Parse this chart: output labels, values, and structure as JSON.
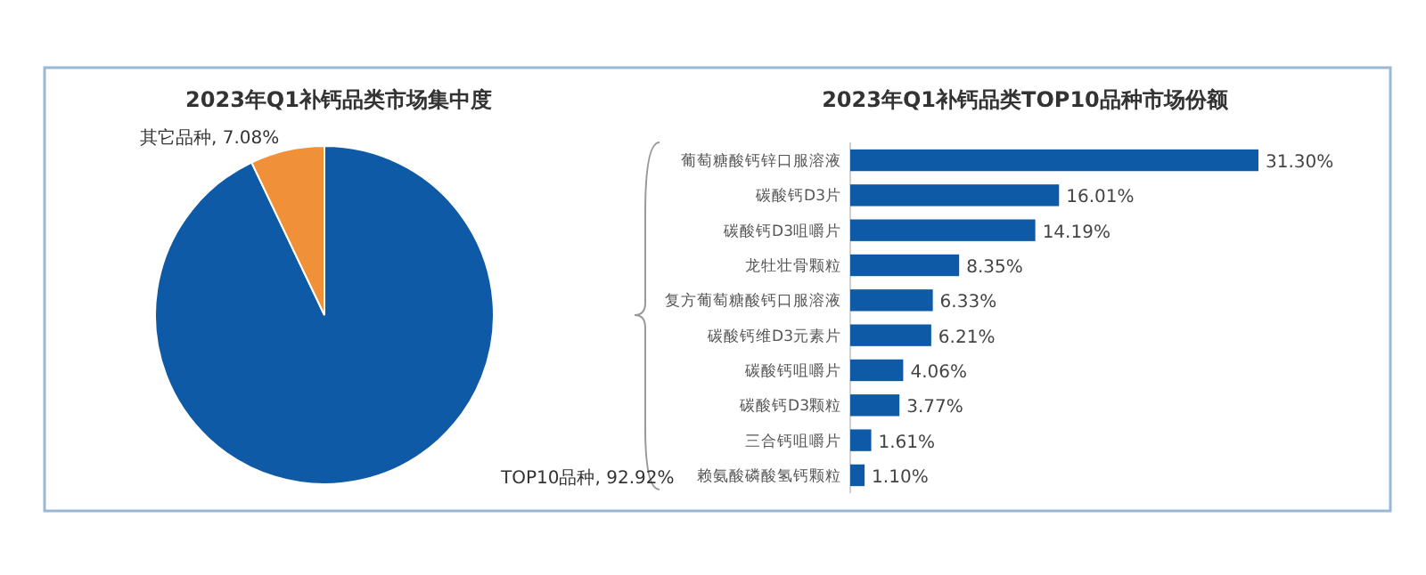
{
  "chart_data": [
    {
      "type": "pie",
      "title": "2023年Q1补钙品类市场集中度",
      "categories": [
        "TOP10品种",
        "其它品种"
      ],
      "values": [
        92.92,
        7.08
      ],
      "colors": [
        "#0f5aa6",
        "#f0913a"
      ],
      "value_labels": [
        "92.92%",
        "7.08%"
      ]
    },
    {
      "type": "bar",
      "orientation": "horizontal",
      "title": "2023年Q1补钙品类TOP10品种市场份额",
      "categories": [
        "葡萄糖酸钙锌口服溶液",
        "碳酸钙D3片",
        "碳酸钙D3咀嚼片",
        "龙牡壮骨颗粒",
        "复方葡萄糖酸钙口服溶液",
        "碳酸钙维D3元素片",
        "碳酸钙咀嚼片",
        "碳酸钙D3颗粒",
        "三合钙咀嚼片",
        "赖氨酸磷酸氢钙颗粒"
      ],
      "values": [
        31.3,
        16.01,
        14.19,
        8.35,
        6.33,
        6.21,
        4.06,
        3.77,
        1.61,
        1.1
      ],
      "color": "#0f5aa6",
      "value_labels": [
        "31.30%",
        "16.01%",
        "14.19%",
        "8.35%",
        "6.33%",
        "6.21%",
        "4.06%",
        "3.77%",
        "1.61%",
        "1.10%"
      ]
    }
  ]
}
